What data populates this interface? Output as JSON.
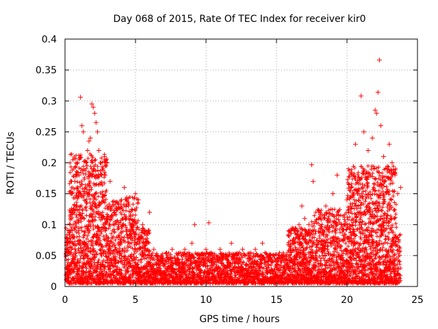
{
  "chart_data": {
    "type": "scatter",
    "title": "Day 068 of 2015, Rate Of TEC Index for receiver kir0",
    "xlabel": "GPS time / hours",
    "ylabel": "ROTI / TECUs",
    "xlim": [
      0,
      25
    ],
    "ylim": [
      0,
      0.4
    ],
    "xticks": [
      0,
      5,
      10,
      15,
      20,
      25
    ],
    "xtick_labels": [
      "0",
      "5",
      "10",
      "15",
      "20",
      "25"
    ],
    "yticks": [
      0,
      0.05,
      0.1,
      0.15,
      0.2,
      0.25,
      0.3,
      0.35,
      0.4
    ],
    "ytick_labels": [
      "0",
      "0.05",
      "0.1",
      "0.15",
      "0.2",
      "0.25",
      "0.3",
      "0.35",
      "0.4"
    ],
    "grid": true,
    "marker": "+",
    "color": "#ff0000",
    "series": [
      {
        "name": "ROTI",
        "points": [
          [
            0.1,
            0.03
          ],
          [
            0.2,
            0.06
          ],
          [
            0.3,
            0.09
          ],
          [
            0.4,
            0.12
          ],
          [
            0.5,
            0.15
          ],
          [
            0.6,
            0.08
          ],
          [
            0.7,
            0.17
          ],
          [
            0.8,
            0.13
          ],
          [
            0.9,
            0.2
          ],
          [
            1.0,
            0.18
          ],
          [
            1.1,
            0.306
          ],
          [
            1.2,
            0.26
          ],
          [
            1.3,
            0.25
          ],
          [
            1.4,
            0.15
          ],
          [
            1.5,
            0.2
          ],
          [
            1.6,
            0.22
          ],
          [
            1.7,
            0.235
          ],
          [
            1.8,
            0.24
          ],
          [
            1.9,
            0.295
          ],
          [
            2.0,
            0.29
          ],
          [
            2.1,
            0.28
          ],
          [
            2.2,
            0.265
          ],
          [
            2.3,
            0.25
          ],
          [
            2.4,
            0.22
          ],
          [
            2.5,
            0.2
          ],
          [
            2.6,
            0.18
          ],
          [
            2.8,
            0.21
          ],
          [
            3.0,
            0.2
          ],
          [
            3.2,
            0.17
          ],
          [
            3.5,
            0.12
          ],
          [
            3.8,
            0.1
          ],
          [
            4.0,
            0.14
          ],
          [
            4.2,
            0.16
          ],
          [
            4.5,
            0.13
          ],
          [
            4.8,
            0.1
          ],
          [
            5.0,
            0.15
          ],
          [
            5.2,
            0.14
          ],
          [
            5.5,
            0.1
          ],
          [
            5.8,
            0.07
          ],
          [
            6.0,
            0.12
          ],
          [
            6.3,
            0.06
          ],
          [
            6.8,
            0.05
          ],
          [
            7.2,
            0.04
          ],
          [
            7.6,
            0.06
          ],
          [
            8.0,
            0.05
          ],
          [
            8.5,
            0.06
          ],
          [
            9.0,
            0.07
          ],
          [
            9.2,
            0.1
          ],
          [
            9.5,
            0.05
          ],
          [
            10.0,
            0.06
          ],
          [
            10.2,
            0.103
          ],
          [
            10.6,
            0.05
          ],
          [
            11.0,
            0.06
          ],
          [
            11.5,
            0.05
          ],
          [
            11.8,
            0.07
          ],
          [
            12.2,
            0.05
          ],
          [
            12.6,
            0.06
          ],
          [
            13.0,
            0.05
          ],
          [
            13.5,
            0.06
          ],
          [
            14.0,
            0.07
          ],
          [
            14.5,
            0.05
          ],
          [
            15.0,
            0.04
          ],
          [
            15.5,
            0.05
          ],
          [
            16.0,
            0.06
          ],
          [
            16.3,
            0.09
          ],
          [
            16.6,
            0.1
          ],
          [
            16.8,
            0.13
          ],
          [
            17.0,
            0.11
          ],
          [
            17.3,
            0.1
          ],
          [
            17.5,
            0.197
          ],
          [
            17.6,
            0.17
          ],
          [
            18.0,
            0.12
          ],
          [
            18.5,
            0.13
          ],
          [
            19.0,
            0.15
          ],
          [
            19.3,
            0.18
          ],
          [
            19.6,
            0.1
          ],
          [
            20.0,
            0.14
          ],
          [
            20.3,
            0.16
          ],
          [
            20.6,
            0.23
          ],
          [
            21.0,
            0.308
          ],
          [
            21.2,
            0.25
          ],
          [
            21.5,
            0.22
          ],
          [
            21.8,
            0.24
          ],
          [
            22.0,
            0.285
          ],
          [
            22.1,
            0.28
          ],
          [
            22.2,
            0.314
          ],
          [
            22.3,
            0.366
          ],
          [
            22.4,
            0.26
          ],
          [
            22.6,
            0.21
          ],
          [
            23.0,
            0.23
          ],
          [
            23.2,
            0.2
          ],
          [
            23.4,
            0.18
          ],
          [
            23.6,
            0.15
          ],
          [
            23.8,
            0.16
          ]
        ]
      }
    ]
  }
}
